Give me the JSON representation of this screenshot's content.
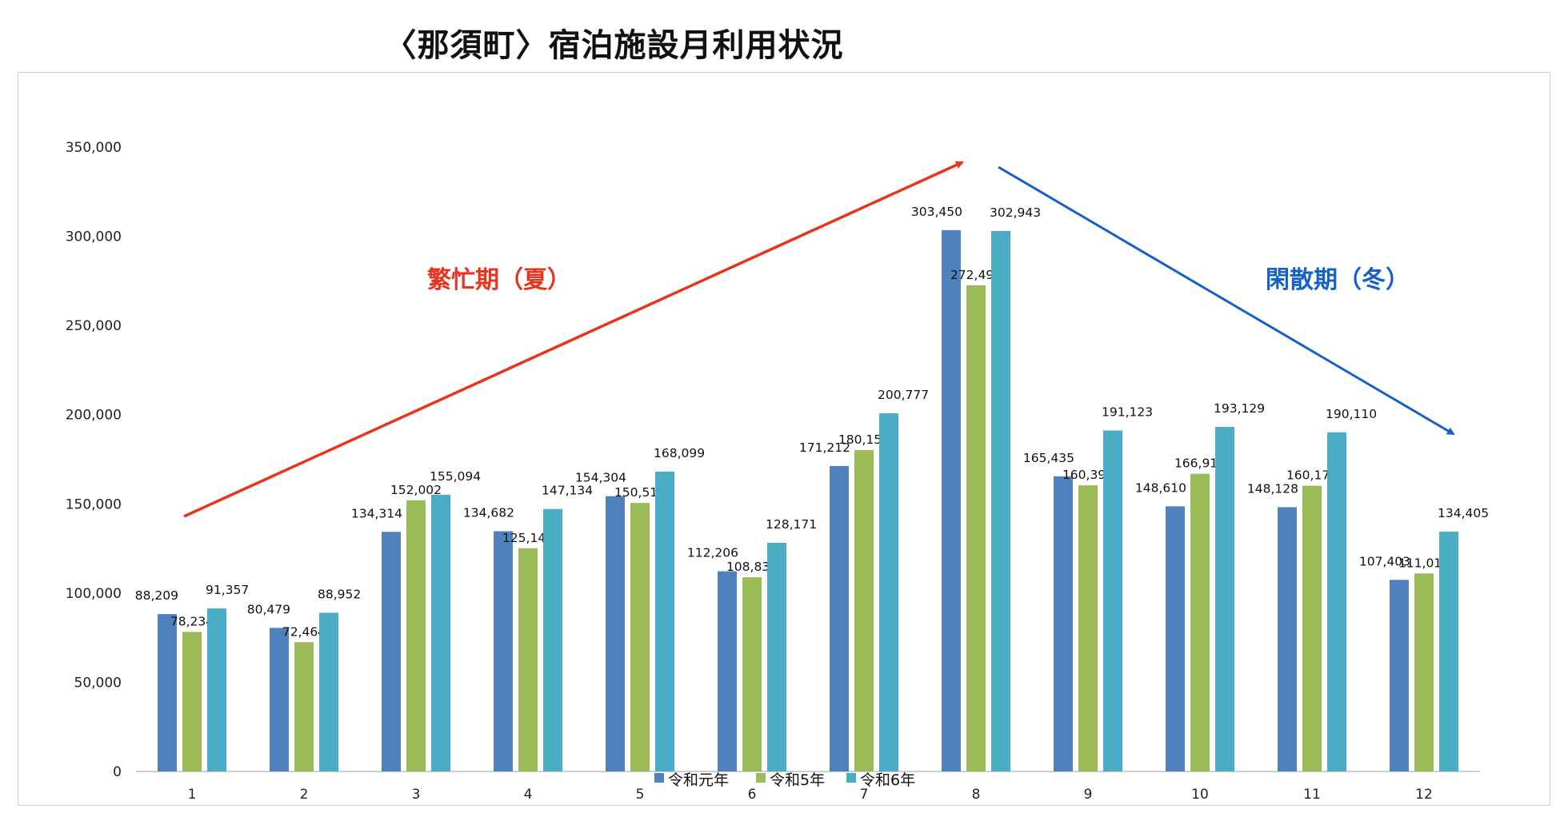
{
  "title": "〈那須町〉宿泊施設月利用状況",
  "chart_data": {
    "type": "bar",
    "categories": [
      "1",
      "2",
      "3",
      "4",
      "5",
      "6",
      "7",
      "8",
      "9",
      "10",
      "11",
      "12"
    ],
    "series": [
      {
        "name": "令和元年",
        "color": "#4f81bd",
        "values": [
          88209,
          80479,
          134314,
          134682,
          154304,
          112206,
          171212,
          303450,
          165435,
          148610,
          148128,
          107403
        ],
        "labels": [
          "88,209",
          "80,479",
          "134,314",
          "134,682",
          "154,304",
          "112,206",
          "171,212",
          "303,450",
          "165,435",
          "148,610",
          "148,128",
          "107,403"
        ]
      },
      {
        "name": "令和5年",
        "color": "#9bbb59",
        "values": [
          78234,
          72464,
          152002,
          125142,
          150512,
          108835,
          180155,
          272496,
          160390,
          166910,
          160170,
          111013
        ],
        "labels": [
          "78,234",
          "72,464",
          "152,002",
          "125,142",
          "150,512",
          "108,835",
          "180,155",
          "272,496",
          "160,390",
          "166,910",
          "160,170",
          "111,013"
        ]
      },
      {
        "name": "令和6年",
        "color": "#4bacc6",
        "values": [
          91357,
          88952,
          155094,
          147134,
          168099,
          128171,
          200777,
          302943,
          191123,
          193129,
          190110,
          134405
        ],
        "labels": [
          "91,357",
          "88,952",
          "155,094",
          "147,134",
          "168,099",
          "128,171",
          "200,777",
          "302,943",
          "191,123",
          "193,129",
          "190,110",
          "134,405"
        ]
      }
    ],
    "yticks": [
      "0",
      "50,000",
      "100,000",
      "150,000",
      "200,000",
      "250,000",
      "300,000",
      "350,000"
    ],
    "ylim": [
      0,
      350000
    ],
    "grid": false,
    "legend": "bottom",
    "annotations": [
      {
        "text": "繁忙期（夏）",
        "color": "#e8341c"
      },
      {
        "text": "閑散期（冬）",
        "color": "#1660c8"
      }
    ]
  }
}
